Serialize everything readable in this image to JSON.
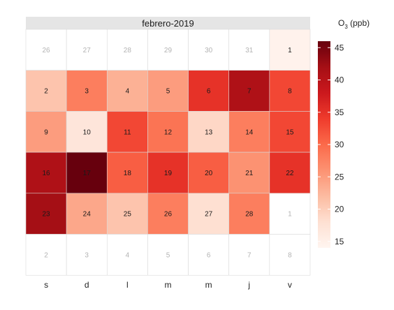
{
  "chart_data": {
    "type": "heatmap",
    "title": "febrero-2019",
    "legend_title": "O",
    "legend_title_sub": "3",
    "legend_title_unit": " (ppb)",
    "legend_ticks": [
      "15",
      "20",
      "25",
      "30",
      "35",
      "40",
      "45"
    ],
    "legend_range": [
      14,
      46
    ],
    "weekday_labels": [
      "s",
      "d",
      "l",
      "m",
      "m",
      "j",
      "v"
    ],
    "colors": {
      "low": "#fff5f0",
      "high": "#67000d",
      "header": "#e5e5e5",
      "grid": "#d9d9d9",
      "outside_text": "#b3b3b3",
      "inside_text": "#1a1a1a"
    },
    "weeks": [
      [
        {
          "label": "26",
          "in_month": false
        },
        {
          "label": "27",
          "in_month": false
        },
        {
          "label": "28",
          "in_month": false
        },
        {
          "label": "29",
          "in_month": false
        },
        {
          "label": "30",
          "in_month": false
        },
        {
          "label": "31",
          "in_month": false
        },
        {
          "label": "1",
          "in_month": true,
          "value": 14.5
        }
      ],
      [
        {
          "label": "2",
          "in_month": true,
          "value": 21
        },
        {
          "label": "3",
          "in_month": true,
          "value": 28
        },
        {
          "label": "4",
          "in_month": true,
          "value": 23
        },
        {
          "label": "5",
          "in_month": true,
          "value": 25
        },
        {
          "label": "6",
          "in_month": true,
          "value": 35
        },
        {
          "label": "7",
          "in_month": true,
          "value": 41
        },
        {
          "label": "8",
          "in_month": true,
          "value": 33
        }
      ],
      [
        {
          "label": "9",
          "in_month": true,
          "value": 25
        },
        {
          "label": "10",
          "in_month": true,
          "value": 17
        },
        {
          "label": "11",
          "in_month": true,
          "value": 33
        },
        {
          "label": "12",
          "in_month": true,
          "value": 29
        },
        {
          "label": "13",
          "in_month": true,
          "value": 19
        },
        {
          "label": "14",
          "in_month": true,
          "value": 28
        },
        {
          "label": "15",
          "in_month": true,
          "value": 33
        }
      ],
      [
        {
          "label": "16",
          "in_month": true,
          "value": 41
        },
        {
          "label": "17",
          "in_month": true,
          "value": 46
        },
        {
          "label": "18",
          "in_month": true,
          "value": 31
        },
        {
          "label": "19",
          "in_month": true,
          "value": 35
        },
        {
          "label": "20",
          "in_month": true,
          "value": 31
        },
        {
          "label": "21",
          "in_month": true,
          "value": 26
        },
        {
          "label": "22",
          "in_month": true,
          "value": 35
        }
      ],
      [
        {
          "label": "23",
          "in_month": true,
          "value": 42
        },
        {
          "label": "24",
          "in_month": true,
          "value": 24
        },
        {
          "label": "25",
          "in_month": true,
          "value": 21
        },
        {
          "label": "26",
          "in_month": true,
          "value": 28
        },
        {
          "label": "27",
          "in_month": true,
          "value": 18
        },
        {
          "label": "28",
          "in_month": true,
          "value": 28
        },
        {
          "label": "1",
          "in_month": false
        }
      ],
      [
        {
          "label": "2",
          "in_month": false
        },
        {
          "label": "3",
          "in_month": false
        },
        {
          "label": "4",
          "in_month": false
        },
        {
          "label": "5",
          "in_month": false
        },
        {
          "label": "6",
          "in_month": false
        },
        {
          "label": "7",
          "in_month": false
        },
        {
          "label": "8",
          "in_month": false
        }
      ]
    ]
  }
}
